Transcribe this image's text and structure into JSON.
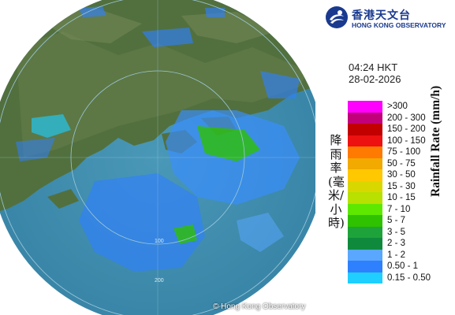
{
  "map": {
    "copyright": "© Hong Kong Observatory",
    "range_ring_labels": [
      "100",
      "200"
    ],
    "land_color": "#4a6a3a",
    "sea_color": "#3f8fb0",
    "outside_color": "#ffffff"
  },
  "panel": {
    "logo": {
      "chinese_name": "香港天文台",
      "english_name": "HONG KONG OBSERVATORY",
      "icon": "hko-logo-icon"
    },
    "time": "04:24 HKT",
    "date": "28-02-2026",
    "title_chinese": "降雨率(毫米/小時)",
    "title_english": "Rainfall Rate (mm/h)",
    "legend": [
      {
        "label": ">300",
        "color": "#ff00ff"
      },
      {
        "label": "200 - 300",
        "color": "#c2007a"
      },
      {
        "label": "150 - 200",
        "color": "#c20000"
      },
      {
        "label": "100 - 150",
        "color": "#ee1111"
      },
      {
        "label": "75 - 100",
        "color": "#ff7a00"
      },
      {
        "label": "50 - 75",
        "color": "#f2a900"
      },
      {
        "label": "30 - 50",
        "color": "#ffc800"
      },
      {
        "label": "15 - 30",
        "color": "#d8d800"
      },
      {
        "label": "10 - 15",
        "color": "#b8e000"
      },
      {
        "label": "7 - 10",
        "color": "#5ee800"
      },
      {
        "label": "5 - 7",
        "color": "#2ec200"
      },
      {
        "label": "3 - 5",
        "color": "#1ea33a"
      },
      {
        "label": "2 - 3",
        "color": "#0f8a3c"
      },
      {
        "label": "1 - 2",
        "color": "#5aa7ff"
      },
      {
        "label": "0.50 - 1",
        "color": "#2f80ff"
      },
      {
        "label": "0.15 - 0.50",
        "color": "#1ecfff"
      }
    ]
  }
}
